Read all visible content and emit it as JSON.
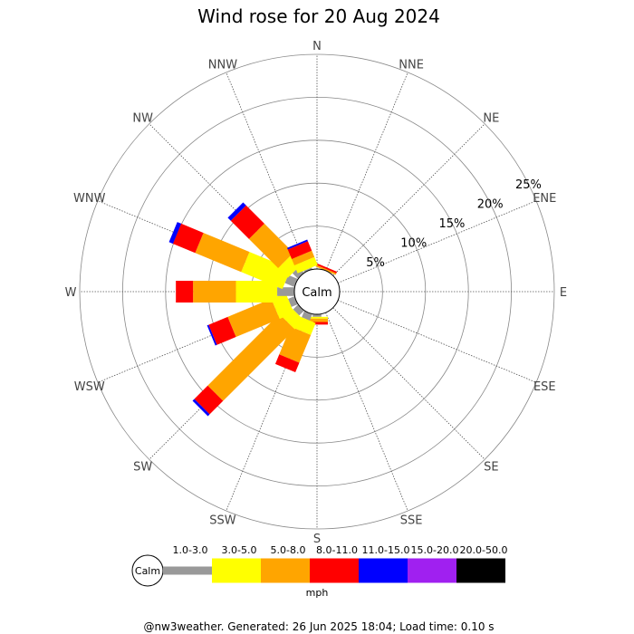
{
  "chart_data": {
    "type": "windrose",
    "title": "Wind rose for 20 Aug 2024",
    "calm_label": "Calm",
    "directions": [
      "N",
      "NNE",
      "NE",
      "ENE",
      "E",
      "ESE",
      "SE",
      "SSE",
      "S",
      "SSW",
      "SW",
      "WSW",
      "W",
      "WNW",
      "NW",
      "NNW"
    ],
    "ring_labels": [
      "5%",
      "10%",
      "15%",
      "20%",
      "25%"
    ],
    "rings_percent": [
      5,
      10,
      15,
      20,
      25
    ],
    "max_percent": 25,
    "speed_bins": [
      {
        "label": "1.0-3.0",
        "color": "#999999"
      },
      {
        "label": "3.0-5.0",
        "color": "#ffff00"
      },
      {
        "label": "5.0-8.0",
        "color": "#ffa500"
      },
      {
        "label": "8.0-11.0",
        "color": "#ff0000"
      },
      {
        "label": "11.0-15.0",
        "color": "#0000ff"
      },
      {
        "label": "15.0-20.0",
        "color": "#a020f0"
      },
      {
        "label": "20.0-50.0",
        "color": "#000000"
      }
    ],
    "unit": "mph",
    "series_percent_by_direction": {
      "N": [
        0,
        0,
        0,
        0,
        0,
        0,
        0
      ],
      "NNE": [
        0,
        0,
        0.2,
        0.2,
        0,
        0,
        0
      ],
      "NE": [
        0,
        0,
        0,
        0,
        0,
        0,
        0
      ],
      "ENE": [
        0,
        0,
        0,
        0,
        0,
        0,
        0
      ],
      "E": [
        0,
        0,
        0,
        0,
        0,
        0,
        0
      ],
      "ESE": [
        0,
        0,
        0,
        0,
        0,
        0,
        0
      ],
      "SE": [
        0,
        0,
        0,
        0,
        0,
        0,
        0
      ],
      "SSE": [
        0,
        0,
        0,
        0,
        0,
        0,
        0
      ],
      "S": [
        0.3,
        0.2,
        0.4,
        0.3,
        0,
        0,
        0
      ],
      "SSW": [
        0.8,
        1.5,
        3.5,
        1.2,
        0,
        0,
        0
      ],
      "SW": [
        0.8,
        1.5,
        11.8,
        2.2,
        0.3,
        0,
        0
      ],
      "WSW": [
        0.8,
        1.8,
        5.5,
        2.4,
        0.2,
        0,
        0
      ],
      "W": [
        2.0,
        4.8,
        5.0,
        2.0,
        0,
        0,
        0
      ],
      "WNW": [
        1.2,
        5.2,
        5.8,
        2.8,
        0.5,
        0,
        0
      ],
      "NW": [
        0.9,
        1.6,
        4.8,
        3.0,
        0.5,
        0,
        0
      ],
      "NNW": [
        0.2,
        1.0,
        0.8,
        1.2,
        0.2,
        0,
        0
      ]
    }
  },
  "footer": "@nw3weather. Generated: 26 Jun 2025 18:04; Load time: 0.10 s"
}
